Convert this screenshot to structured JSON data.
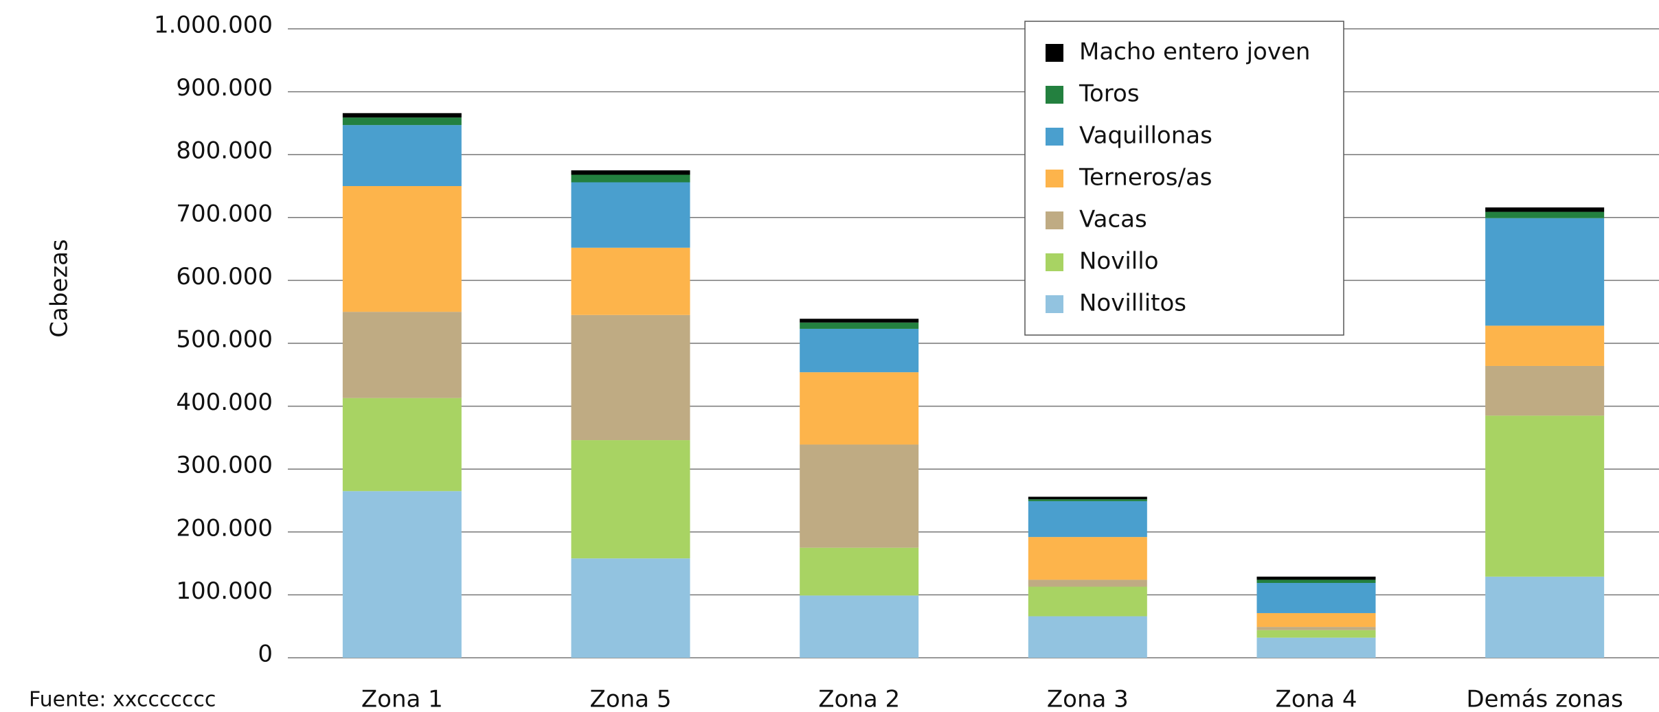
{
  "chart_data": {
    "type": "stacked_bar",
    "y_label": "Cabezas",
    "source": "Fuente: xxccccccc",
    "categories": [
      "Zona 1",
      "Zona 5",
      "Zona 2",
      "Zona 3",
      "Zona 4",
      "Demás zonas"
    ],
    "series": [
      {
        "name": "Novillitos",
        "color": "#92c3e0",
        "values": [
          265000,
          158000,
          99000,
          66000,
          32000,
          129000
        ]
      },
      {
        "name": "Novillo",
        "color": "#a8d363",
        "values": [
          148000,
          188000,
          76000,
          47000,
          12000,
          256000
        ]
      },
      {
        "name": "Vacas",
        "color": "#bfab83",
        "values": [
          137000,
          199000,
          164000,
          11000,
          5000,
          79000
        ]
      },
      {
        "name": "Terneros/as",
        "color": "#fdb44b",
        "values": [
          200000,
          107000,
          115000,
          68000,
          22000,
          64000
        ]
      },
      {
        "name": "Vaquillonas",
        "color": "#4a9fce",
        "values": [
          97000,
          104000,
          69000,
          57000,
          48000,
          171000
        ]
      },
      {
        "name": "Toros",
        "color": "#23803f",
        "values": [
          12000,
          12000,
          10000,
          3000,
          5000,
          10000
        ]
      },
      {
        "name": "Macho entero joven",
        "color": "#000000",
        "values": [
          7000,
          7000,
          6000,
          4000,
          5000,
          7000
        ]
      }
    ],
    "ylim": [
      0,
      1000000
    ],
    "yticks": [
      0,
      {
        "value": 100000,
        "label": "100.000"
      },
      {
        "value": 200000,
        "label": "200.000"
      },
      {
        "value": 300000,
        "label": "300.000"
      },
      {
        "value": 400000,
        "label": "400.000"
      },
      {
        "value": 500000,
        "label": "500.000"
      },
      {
        "value": 600000,
        "label": "600.000"
      },
      {
        "value": 700000,
        "label": "700.000"
      },
      {
        "value": 800000,
        "label": "800.000"
      },
      {
        "value": 900000,
        "label": "900.000"
      },
      {
        "value": 1000000,
        "label": "1.000.000"
      }
    ],
    "grid": true
  }
}
